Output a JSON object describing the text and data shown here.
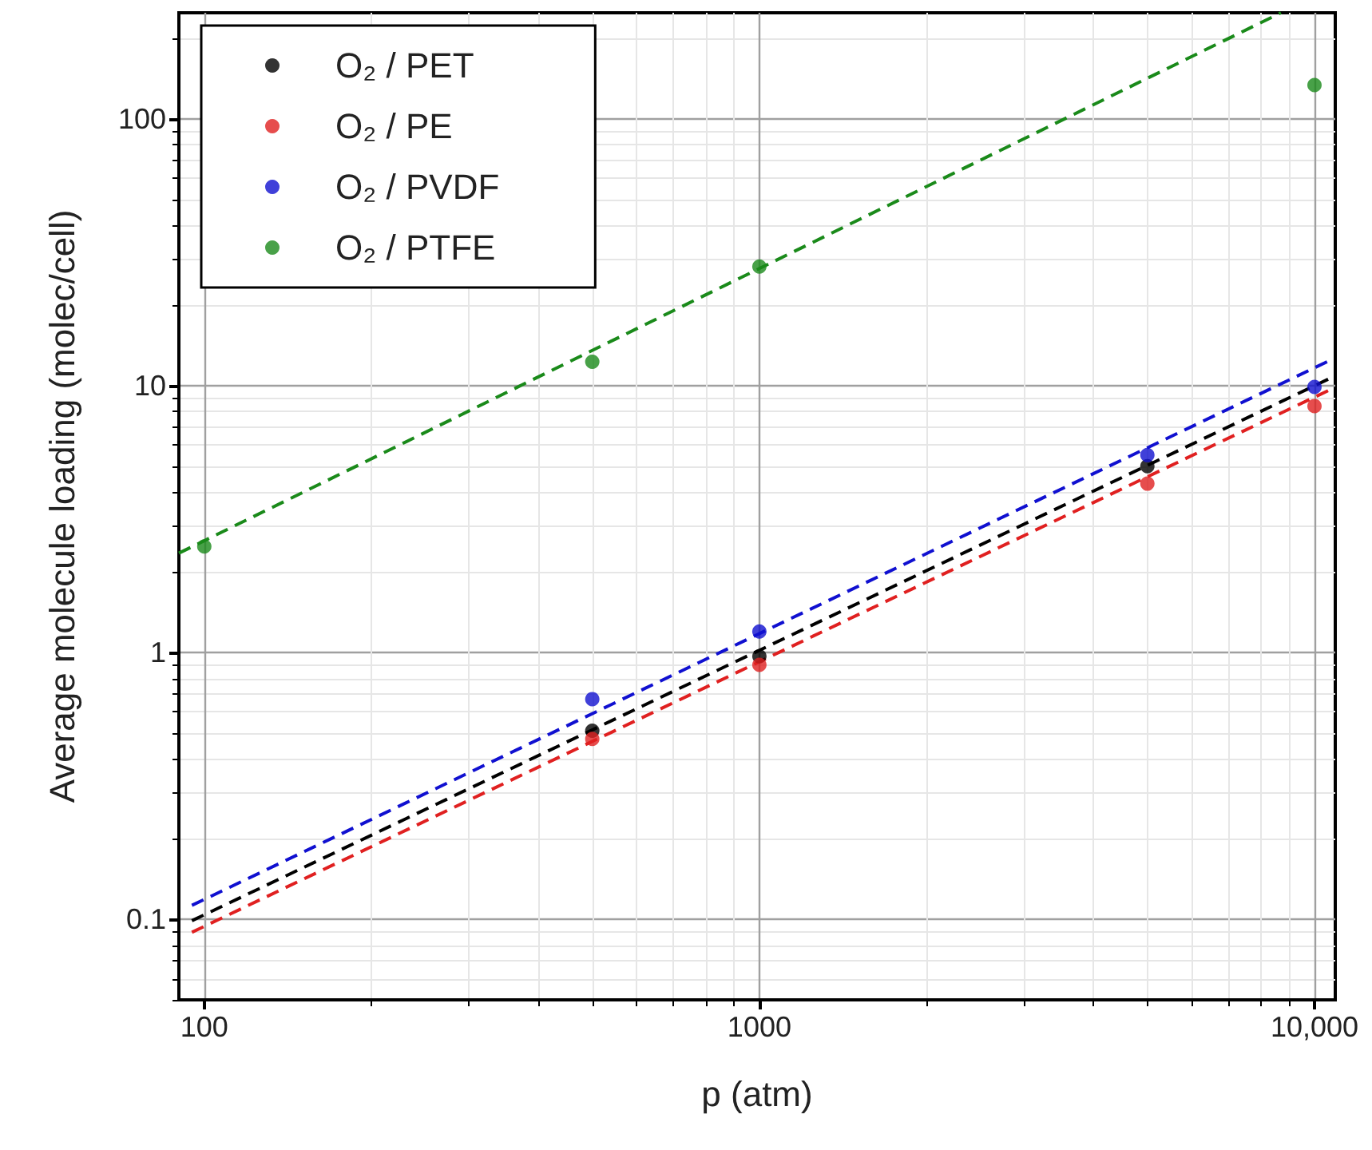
{
  "chart_data": {
    "type": "scatter",
    "xlabel": "p (atm)",
    "ylabel": "Average molecule loading (molec/cell)",
    "log": "xy",
    "grid": true,
    "legend": "top left",
    "marker": "circle",
    "xlim": [
      90,
      10900
    ],
    "ylim": [
      0.05,
      250
    ],
    "xticks": [
      100,
      1000,
      {
        "value": 10000,
        "label": "10,000"
      }
    ],
    "yticks": [
      0.1,
      1,
      10,
      100
    ],
    "series": [
      {
        "name": "O₂ / PET",
        "color": "#000000",
        "x": [
          500,
          1000,
          5000
        ],
        "values": [
          0.51,
          0.97,
          5.0
        ]
      },
      {
        "name": "O₂ / PE",
        "color": "#e02020",
        "x": [
          500,
          1000,
          5000,
          10000
        ],
        "values": [
          0.475,
          0.9,
          4.3,
          8.4
        ]
      },
      {
        "name": "O₂ / PVDF",
        "color": "#1010d0",
        "x": [
          500,
          1000,
          5000,
          10000
        ],
        "values": [
          0.67,
          1.2,
          5.5,
          9.9
        ]
      },
      {
        "name": "O₂ / PTFE",
        "color": "#1a8a1a",
        "x": [
          100,
          500,
          1000,
          10000
        ],
        "values": [
          2.5,
          12.3,
          28,
          134
        ]
      },
      {
        "type": "line",
        "color": "#000000",
        "line_style": "dashed",
        "marker": "none",
        "x": [
          95,
          10700
        ],
        "values": [
          0.099,
          10.7
        ]
      },
      {
        "type": "line",
        "color": "#e02020",
        "line_style": "dashed",
        "marker": "none",
        "x": [
          95,
          10700
        ],
        "values": [
          0.0896,
          9.7
        ]
      },
      {
        "type": "line",
        "color": "#1010d0",
        "line_style": "dashed",
        "marker": "none",
        "x": [
          95,
          10700
        ],
        "values": [
          0.113,
          12.5
        ]
      },
      {
        "type": "line",
        "color": "#1a8a1a",
        "line_style": "dashed",
        "marker": "none",
        "x": [
          90,
          8700
        ],
        "values": [
          2.36,
          250
        ]
      }
    ]
  }
}
